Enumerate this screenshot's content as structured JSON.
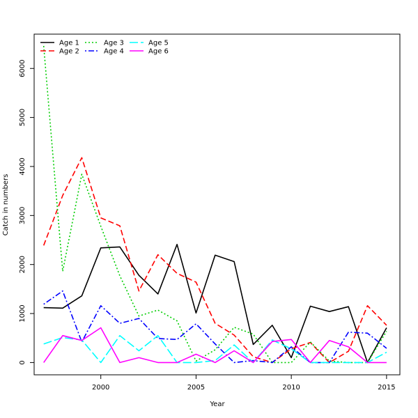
{
  "chart_data": {
    "type": "line",
    "xlabel": "Year",
    "ylabel": "Catch in numbers",
    "xlim": [
      1996.5,
      2015.7
    ],
    "ylim": [
      -250,
      6700
    ],
    "x_ticks": [
      2000,
      2005,
      2010,
      2015
    ],
    "y_ticks": [
      0,
      1000,
      2000,
      3000,
      4000,
      5000,
      6000
    ],
    "x_tick_labels": [
      "2000",
      "2005",
      "2010",
      "2015"
    ],
    "y_tick_labels": [
      "0",
      "1000",
      "2000",
      "3000",
      "4000",
      "5000",
      "6000"
    ],
    "grid": false,
    "legend_position": "top-left",
    "x": [
      1997,
      1998,
      1999,
      2000,
      2001,
      2002,
      2003,
      2004,
      2005,
      2006,
      2007,
      2008,
      2009,
      2010,
      2011,
      2012,
      2013,
      2014,
      2015
    ],
    "series": [
      {
        "name": "Age 1",
        "color": "#000000",
        "dash": "solid",
        "values": [
          1120,
          1110,
          1360,
          2340,
          2360,
          1780,
          1400,
          2410,
          1010,
          2190,
          2060,
          370,
          760,
          100,
          1150,
          1040,
          1140,
          0,
          710
        ]
      },
      {
        "name": "Age 2",
        "color": "#ff0000",
        "dash": "dashed",
        "values": [
          2390,
          3410,
          4180,
          2950,
          2790,
          1460,
          2200,
          1820,
          1640,
          800,
          560,
          120,
          0,
          280,
          410,
          0,
          230,
          1160,
          760
        ]
      },
      {
        "name": "Age 3",
        "color": "#00cd00",
        "dash": "dotted",
        "values": [
          6460,
          1860,
          3840,
          2780,
          1770,
          950,
          1070,
          850,
          30,
          260,
          720,
          580,
          0,
          0,
          420,
          30,
          0,
          0,
          640
        ]
      },
      {
        "name": "Age 4",
        "color": "#0000ff",
        "dash": "dotdash",
        "values": [
          1190,
          1460,
          420,
          1160,
          800,
          900,
          490,
          470,
          790,
          380,
          0,
          40,
          0,
          320,
          0,
          0,
          620,
          600,
          290
        ]
      },
      {
        "name": "Age 5",
        "color": "#00ffff",
        "dash": "longdash",
        "values": [
          380,
          510,
          460,
          0,
          550,
          240,
          550,
          0,
          0,
          40,
          360,
          0,
          460,
          280,
          0,
          0,
          0,
          0,
          210
        ]
      },
      {
        "name": "Age 6",
        "color": "#ff00ff",
        "dash": "solid",
        "values": [
          0,
          550,
          450,
          710,
          0,
          100,
          0,
          0,
          170,
          0,
          240,
          0,
          430,
          470,
          0,
          450,
          320,
          0,
          0
        ]
      }
    ]
  }
}
